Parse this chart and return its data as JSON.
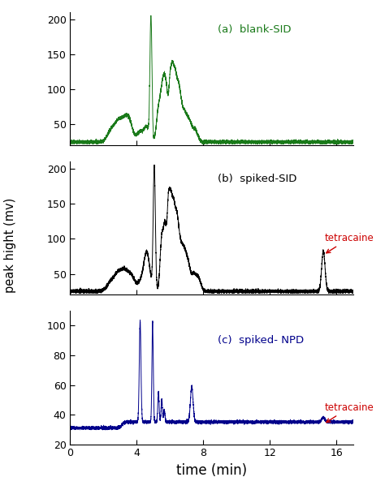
{
  "title": "",
  "xlabel": "time (min)",
  "ylabel": "peak hight (mv)",
  "xlim": [
    0,
    17
  ],
  "subplot_a": {
    "label": "(a)  blank-SID",
    "color": "#1a7a1a",
    "ylim": [
      20,
      210
    ],
    "yticks": [
      50,
      100,
      150,
      200
    ],
    "baseline": 25
  },
  "subplot_b": {
    "label": "(b)  spiked-SID",
    "color": "#000000",
    "ylim": [
      20,
      210
    ],
    "yticks": [
      50,
      100,
      150,
      200
    ],
    "baseline": 25
  },
  "subplot_c": {
    "label": "(c)  spiked- NPD",
    "color": "#00008B",
    "ylim": [
      20,
      110
    ],
    "yticks": [
      20,
      40,
      60,
      80,
      100
    ],
    "baseline": 31
  },
  "annotation_color": "#cc0000",
  "xticks": [
    0,
    4,
    8,
    12,
    16
  ]
}
